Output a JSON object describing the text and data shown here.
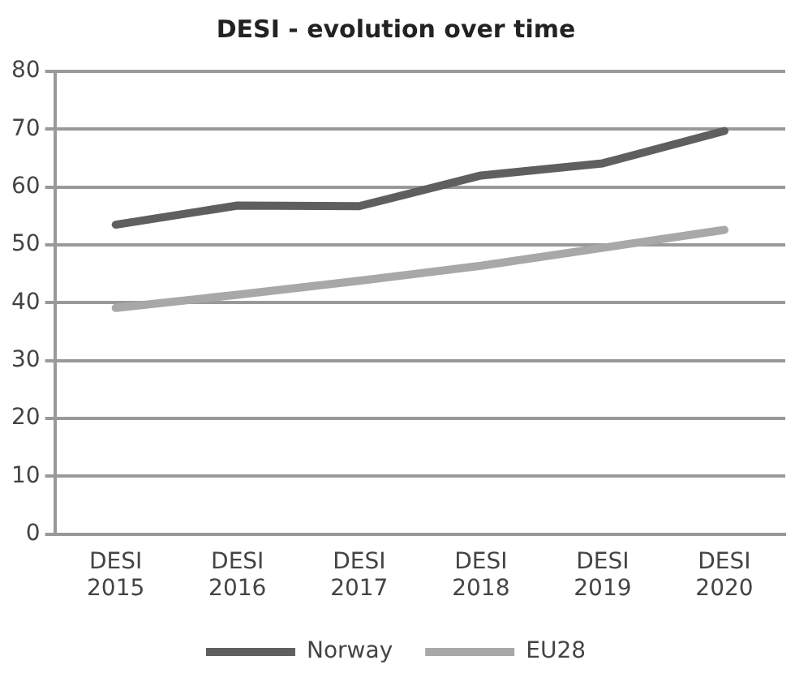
{
  "chart_data": {
    "type": "line",
    "title": "DESI - evolution over time",
    "categories": [
      "DESI 2015",
      "DESI 2016",
      "DESI 2017",
      "DESI 2018",
      "DESI 2019",
      "DESI 2020"
    ],
    "series": [
      {
        "name": "Norway",
        "color": "#5f5f5f",
        "values": [
          53.5,
          56.8,
          56.7,
          62,
          64.1,
          69.7
        ]
      },
      {
        "name": "EU28",
        "color": "#a8a8a8",
        "values": [
          39.1,
          41.4,
          43.8,
          46.4,
          49.5,
          52.6
        ]
      }
    ],
    "ylim": [
      0,
      80
    ],
    "yticks": [
      0,
      10,
      20,
      30,
      40,
      50,
      60,
      70,
      80
    ],
    "grid": "y",
    "legend": "bottom",
    "marker": "none",
    "line_style": "solid"
  }
}
